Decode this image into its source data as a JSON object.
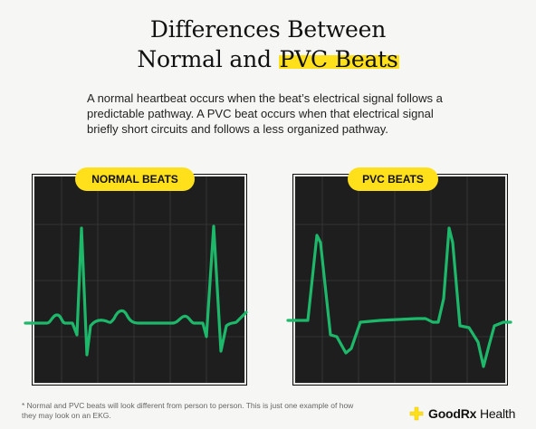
{
  "header": {
    "title_line1": "Differences Between",
    "title_line2_prefix": "Normal and ",
    "title_line2_highlight": "PVC Beats"
  },
  "intro": {
    "text": "A normal heartbeat occurs when the beat’s electrical signal follows a predictable pathway.  A PVC beat occurs when that electrical signal briefly short circuits and follows a less organized pathway."
  },
  "panels": {
    "normal": {
      "label": "NORMAL BEATS"
    },
    "pvc": {
      "label": "PVC BEATS"
    }
  },
  "footnote": {
    "text": "* Normal and PVC beats will look different from person to person. This is just one example of how they may look on an EKG."
  },
  "brand": {
    "name_bold": "GoodRx",
    "name_light": " Health",
    "logo_icon": "plus-cross-icon",
    "accent": "#ffe01b"
  },
  "colors": {
    "trace": "#1db86a",
    "highlight": "#ffe01b",
    "screen": "#1e1e1e"
  }
}
